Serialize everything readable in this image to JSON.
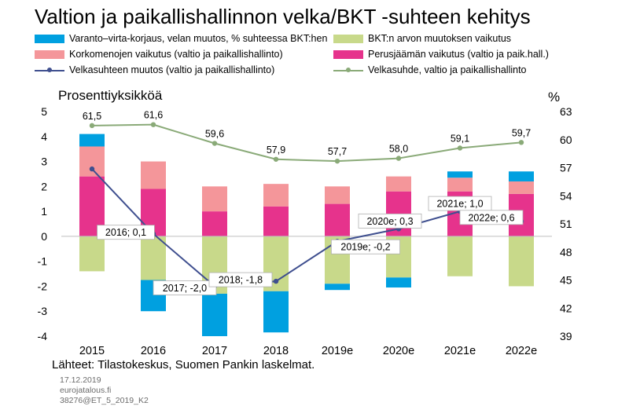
{
  "title": "Valtion ja paikallishallinnon velka/BKT -suhteen kehitys",
  "legend": [
    {
      "label": "Varanto–virta-korjaus, velan muutos, % suhteessa BKT:hen",
      "color": "#00a0e0",
      "kind": "bar"
    },
    {
      "label": "BKT:n arvon muutoksen vaikutus",
      "color": "#c8d98a",
      "kind": "bar"
    },
    {
      "label": "Korkomenojen vaikutus (valtio ja paikallishallinto)",
      "color": "#f4969a",
      "kind": "bar"
    },
    {
      "label": "Perusjäämän vaikutus (valtio ja paik.hall.)",
      "color": "#e6338c",
      "kind": "bar"
    },
    {
      "label": "Velkasuhteen muutos (valtio ja paikallishallinto)",
      "color": "#3f4f8f",
      "kind": "line"
    },
    {
      "label": "Velkasuhde, valtio ja paikallishallinto",
      "color": "#8aaa78",
      "kind": "line"
    }
  ],
  "left_axis_title": "Prosenttiyksikköä",
  "right_axis_title": "%",
  "footer": {
    "sources": "Lähteet: Tilastokeskus, Suomen Pankin laskelmat.",
    "date": "17.12.2019",
    "site": "eurojatalous.fi",
    "code": "38276@ET_5_2019_K2"
  },
  "chart_data": {
    "type": "bar",
    "stacked": true,
    "title": "Valtion ja paikallishallinnon velka/BKT -suhteen kehitys",
    "categories": [
      "2015",
      "2016",
      "2017",
      "2018",
      "2019e",
      "2020e",
      "2021e",
      "2022e"
    ],
    "ylabel": "Prosenttiyksikköä",
    "ylim": [
      -4,
      5
    ],
    "yticks": [
      -4,
      -3,
      -2,
      -1,
      0,
      1,
      2,
      3,
      4,
      5
    ],
    "y2label": "%",
    "y2lim": [
      39,
      63
    ],
    "y2ticks": [
      39,
      42,
      45,
      48,
      51,
      54,
      57,
      60,
      63
    ],
    "series": [
      {
        "name": "Perusjäämän vaikutus (valtio ja paik.hall.)",
        "type": "bar",
        "color": "#e6338c",
        "values": [
          2.4,
          1.9,
          1.0,
          1.2,
          1.3,
          1.8,
          1.8,
          1.7
        ]
      },
      {
        "name": "Korkomenojen vaikutus (valtio ja paikallishallinto)",
        "type": "bar",
        "color": "#f4969a",
        "values": [
          1.2,
          1.1,
          1.0,
          0.9,
          0.7,
          0.6,
          0.55,
          0.5
        ]
      },
      {
        "name": "BKT:n arvon muutoksen vaikutus",
        "type": "bar",
        "color": "#c8d98a",
        "values": [
          -1.4,
          -1.75,
          -2.3,
          -2.2,
          -1.9,
          -1.65,
          -1.6,
          -2.0
        ]
      },
      {
        "name": "Varanto–virta-korjaus, velan muutos, % suhteessa BKT:hen",
        "type": "bar",
        "color": "#00a0e0",
        "values": [
          0.5,
          -1.25,
          -1.7,
          -1.65,
          -0.25,
          -0.4,
          0.25,
          0.4
        ]
      },
      {
        "name": "Velkasuhteen muutos (valtio ja paikallishallinto)",
        "type": "line",
        "axis": "left",
        "color": "#3f4f8f",
        "values": [
          2.7,
          0.1,
          -2.0,
          -1.8,
          -0.2,
          0.3,
          1.0,
          0.6
        ]
      },
      {
        "name": "Velkasuhde, valtio ja paikallishallinto",
        "type": "line",
        "axis": "right",
        "color": "#8aaa78",
        "values": [
          61.5,
          61.6,
          59.6,
          57.9,
          57.7,
          58.0,
          59.1,
          59.7
        ]
      }
    ],
    "debt_ratio_labels": [
      "61,5",
      "61,6",
      "59,6",
      "57,9",
      "57,7",
      "58,0",
      "59,1",
      "59,7"
    ],
    "change_labels": [
      {
        "index": 1,
        "text": "2016; 0,1"
      },
      {
        "index": 2,
        "text": "2017; -2,0"
      },
      {
        "index": 3,
        "text": "2018; -1,8"
      },
      {
        "index": 4,
        "text": "2019e; -0,2"
      },
      {
        "index": 5,
        "text": "2020e; 0,3"
      },
      {
        "index": 6,
        "text": "2021e; 1,0"
      },
      {
        "index": 7,
        "text": "2022e; 0,6"
      }
    ]
  }
}
